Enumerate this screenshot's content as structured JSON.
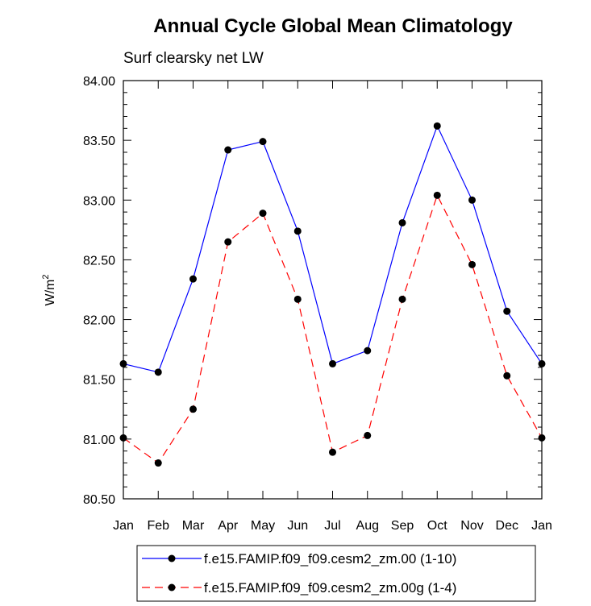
{
  "chart_data": {
    "type": "line",
    "title": "Annual Cycle Global Mean Climatology",
    "subtitle": "Surf clearsky net LW",
    "xlabel": "",
    "ylabel": "W/m",
    "ylabel_superscript": "2",
    "ylim": [
      80.5,
      84.0
    ],
    "yticks": [
      "80.50",
      "81.00",
      "81.50",
      "82.00",
      "82.50",
      "83.00",
      "83.50",
      "84.00"
    ],
    "categories": [
      "Jan",
      "Feb",
      "Mar",
      "Apr",
      "May",
      "Jun",
      "Jul",
      "Aug",
      "Sep",
      "Oct",
      "Nov",
      "Dec",
      "Jan"
    ],
    "grid": false,
    "legend_position": "bottom",
    "series": [
      {
        "name": "f.e15.FAMIP.f09_f09.cesm2_zm.00 (1-10)",
        "color": "#0000ff",
        "dash": "solid",
        "values": [
          81.63,
          81.56,
          82.34,
          83.42,
          83.49,
          82.74,
          81.63,
          81.74,
          82.81,
          83.62,
          83.0,
          82.07,
          81.63
        ]
      },
      {
        "name": "f.e15.FAMIP.f09_f09.cesm2_zm.00g (1-4)",
        "color": "#ff0000",
        "dash": "dashed",
        "values": [
          81.01,
          80.8,
          81.25,
          82.65,
          82.89,
          82.17,
          80.89,
          81.03,
          82.17,
          83.04,
          82.46,
          81.53,
          81.01
        ]
      }
    ]
  }
}
